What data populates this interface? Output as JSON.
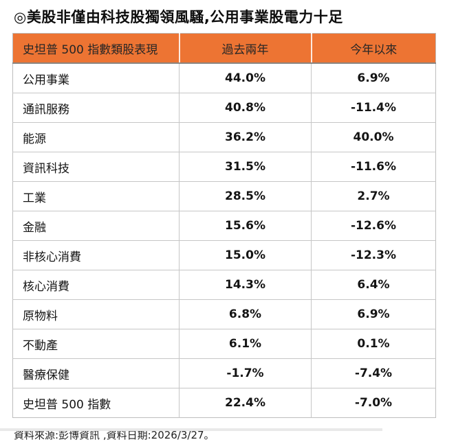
{
  "chart_data": {
    "type": "table",
    "title": "◎美股非僅由科技股獨領風騷,公用事業股電力十足",
    "columns": [
      "史坦普 500 指數類股表現",
      "過去兩年",
      "今年以來"
    ],
    "rows": [
      [
        "公用事業",
        "44.0%",
        "6.9%"
      ],
      [
        "通訊服務",
        "40.8%",
        "-11.4%"
      ],
      [
        "能源",
        "36.2%",
        "40.0%"
      ],
      [
        "資訊科技",
        "31.5%",
        "-11.6%"
      ],
      [
        "工業",
        "28.5%",
        "2.7%"
      ],
      [
        "金融",
        "15.6%",
        "-12.6%"
      ],
      [
        "非核心消費",
        "15.0%",
        "-12.3%"
      ],
      [
        "核心消費",
        "14.3%",
        "6.4%"
      ],
      [
        "原物料",
        "6.8%",
        "6.9%"
      ],
      [
        "不動產",
        "6.1%",
        "0.1%"
      ],
      [
        "醫療保健",
        "-1.7%",
        "-7.4%"
      ],
      [
        "史坦普 500 指數",
        "22.4%",
        "-7.0%"
      ]
    ],
    "source": "資料來源:彭博資訊 ,資料日期:2026/3/27。",
    "layout": {
      "legend": "none",
      "grid": "table-borders"
    }
  },
  "colors": {
    "header_bg": "#ed7433",
    "header_text": "#262626",
    "header_underline": "#8a8581",
    "cell_border": "#c6c6c6",
    "body_text": "#141414"
  }
}
